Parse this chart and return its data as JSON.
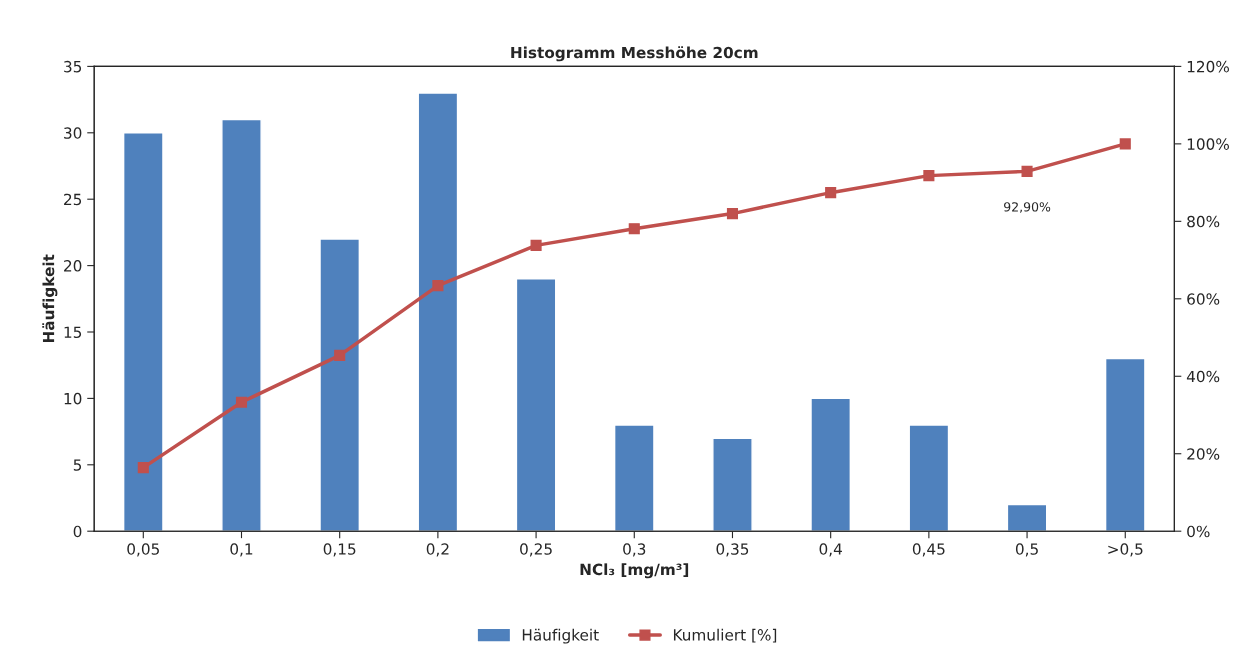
{
  "chart_data": {
    "type": "bar",
    "title": "Histogramm Messhöhe 20cm",
    "xlabel": "NCl₃ [mg/m³]",
    "ylabel": "Häufigkeit",
    "categories": [
      "0,05",
      "0,1",
      "0,15",
      "0,2",
      "0,25",
      "0,3",
      "0,35",
      "0,4",
      "0,45",
      "0,5",
      ">0,5"
    ],
    "series": [
      {
        "name": "Häufigkeit",
        "color": "#4f81bd",
        "values": [
          30,
          31,
          22,
          33,
          19,
          8,
          7,
          10,
          8,
          2,
          13
        ]
      },
      {
        "name": "Kumuliert [%]",
        "type": "line",
        "axis": "y2",
        "color": "#c0504d",
        "marker": "square",
        "values": [
          16.4,
          33.3,
          45.4,
          63.4,
          73.8,
          78.1,
          82.0,
          87.4,
          91.8,
          92.9,
          100
        ],
        "value_labels": [
          null,
          null,
          null,
          null,
          null,
          null,
          null,
          null,
          null,
          "92,90%",
          null
        ]
      }
    ],
    "ylim": [
      0,
      35
    ],
    "yticks": [
      0,
      5,
      10,
      15,
      20,
      25,
      30,
      35
    ],
    "y2lim": [
      0,
      120
    ],
    "y2ticks": [
      {
        "value": 0,
        "label": "0%"
      },
      {
        "value": 20,
        "label": "20%"
      },
      {
        "value": 40,
        "label": "40%"
      },
      {
        "value": 60,
        "label": "60%"
      },
      {
        "value": 80,
        "label": "80%"
      },
      {
        "value": 100,
        "label": "100%"
      },
      {
        "value": 120,
        "label": "120%"
      }
    ],
    "grid": false,
    "legend": "bottom"
  }
}
